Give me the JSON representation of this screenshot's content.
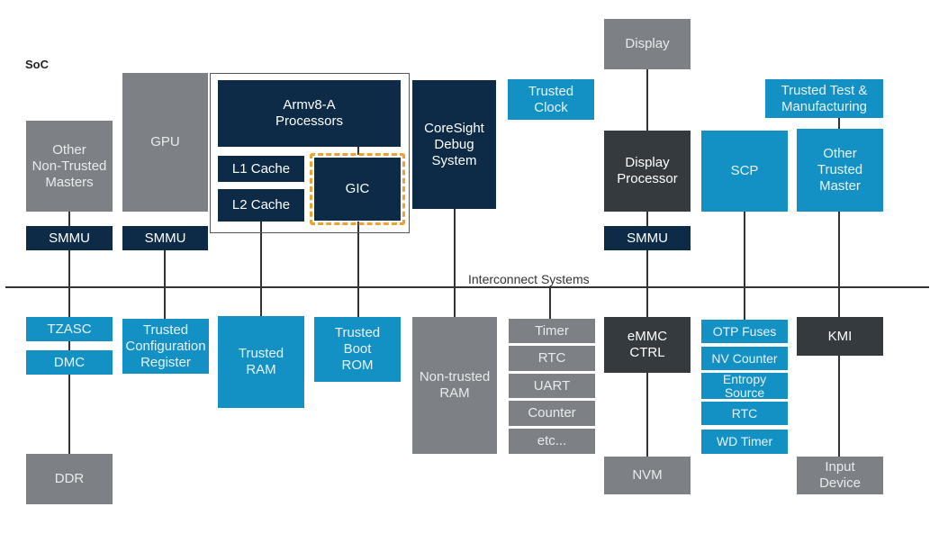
{
  "soc_label": "SoC",
  "interconnect_label": "Interconnect Systems",
  "colors": {
    "grey": "#7d8186",
    "blue": "#1491c4",
    "navy": "#0d2b47",
    "dark": "#353a3f",
    "gic_dash": "#f0a030"
  },
  "blocks": {
    "other_non_trusted_masters": [
      "Other",
      "Non-Trusted",
      "Masters"
    ],
    "gpu": "GPU",
    "smmu": "SMMU",
    "armv8a": [
      "Armv8-A",
      "Processors"
    ],
    "l1_cache": "L1 Cache",
    "l2_cache": "L2 Cache",
    "gic": "GIC",
    "coresight": [
      "CoreSight",
      "Debug",
      "System"
    ],
    "trusted_clock": [
      "Trusted",
      "Clock"
    ],
    "display": "Display",
    "display_processor": [
      "Display",
      "Processor"
    ],
    "trusted_test": [
      "Trusted Test &",
      "Manufacturing"
    ],
    "scp": "SCP",
    "other_trusted_master": [
      "Other",
      "Trusted",
      "Master"
    ],
    "tzasc": "TZASC",
    "dmc": "DMC",
    "ddr": "DDR",
    "trusted_config_register": [
      "Trusted",
      "Configuration",
      "Register"
    ],
    "trusted_ram": [
      "Trusted",
      "RAM"
    ],
    "trusted_boot_rom": [
      "Trusted",
      "Boot",
      "ROM"
    ],
    "non_trusted_ram": [
      "Non-trusted",
      "RAM"
    ],
    "timer": "Timer",
    "rtc": "RTC",
    "uart": "UART",
    "counter": "Counter",
    "etc": "etc...",
    "emmc_ctrl": [
      "eMMC",
      "CTRL"
    ],
    "nvm": "NVM",
    "otp_fuses": "OTP Fuses",
    "nv_counter": "NV Counter",
    "entropy_source": [
      "Entropy",
      "Source"
    ],
    "rtc2": "RTC",
    "wd_timer": "WD Timer",
    "kmi": "KMI",
    "input_device": [
      "Input",
      "Device"
    ]
  }
}
